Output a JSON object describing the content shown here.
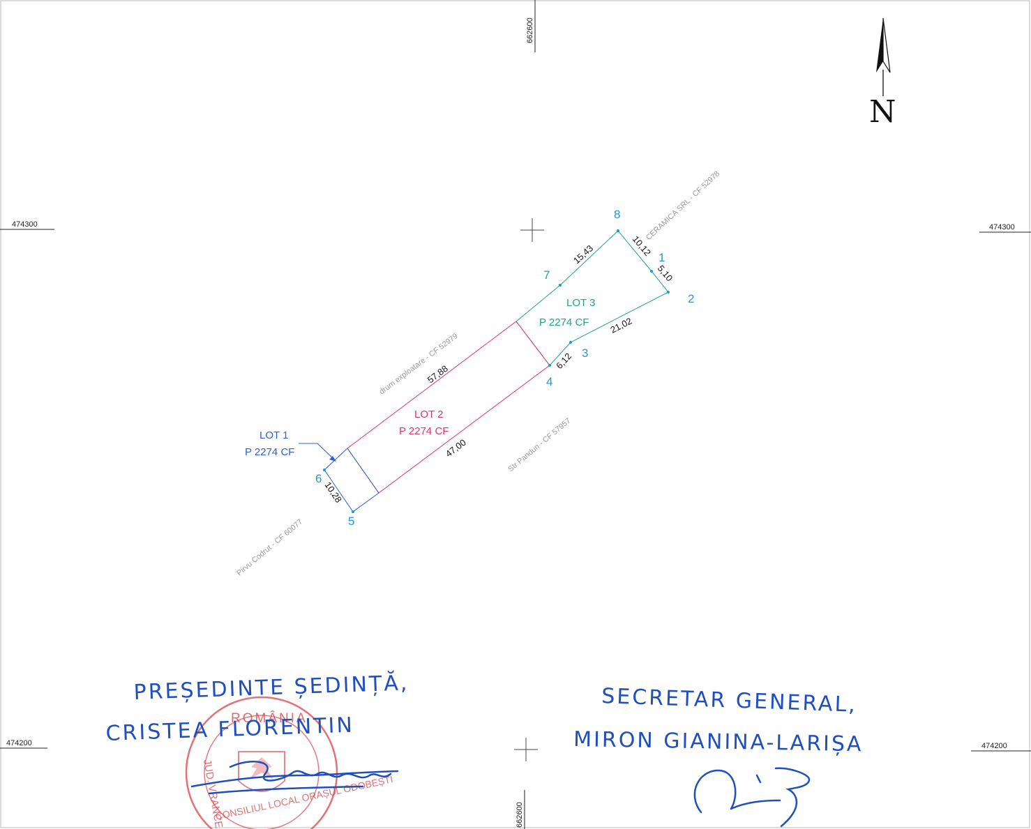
{
  "grid": {
    "easting_top": "662600",
    "easting_bottom": "662600",
    "northing_upper_left": "474300",
    "northing_upper_right": "474300",
    "northing_lower_left": "474200",
    "northing_lower_right": "474200"
  },
  "north_arrow": {
    "label": "N"
  },
  "points": {
    "p1": "1",
    "p2": "2",
    "p3": "3",
    "p4": "4",
    "p5": "5",
    "p6": "6",
    "p7": "7",
    "p8": "8"
  },
  "dimensions": {
    "d7_8": "15,43",
    "d8_1": "10,12",
    "d1_2": "5,10",
    "d2_3": "21,02",
    "d3_4": "6,12",
    "d6_7": "57,88",
    "d4_5": "47,00",
    "d5_6": "10,28"
  },
  "neighbours": {
    "north_east": "CERAMICA SRL - CF 52978",
    "north_west": "drum exploatare - CF 52979",
    "south_east": "Str Pandun - CF 57957",
    "south_west": "Pirvu Codrut - CF 60077"
  },
  "lots": {
    "lot3": {
      "name": "LOT 3",
      "parcel": "P 2274 CF"
    },
    "lot2": {
      "name": "LOT 2",
      "parcel": "P 2274 CF"
    },
    "lot1": {
      "name": "LOT 1",
      "parcel": "P 2274 CF"
    }
  },
  "signatures": {
    "left_title": "PREȘEDINTE ȘEDINȚĂ,",
    "left_name": "CRISTEA FLORENTIN",
    "right_title": "SECRETAR GENERAL,",
    "right_name": "MIRON GIANINA-LARIȘA"
  },
  "stamp": {
    "top_text": "ROMÂNIA",
    "left_text": "JUD. VRANCEA",
    "bottom_text": "CONSILIUL LOCAL ORAȘUL ODOBEȘTI"
  },
  "colors": {
    "lot1": "#2c5fd6",
    "lot2": "#e0356e",
    "lot3": "#1aa686",
    "point": "#1a9bd6",
    "ink": "#1f4fbf",
    "stamp": "#d9434b"
  }
}
